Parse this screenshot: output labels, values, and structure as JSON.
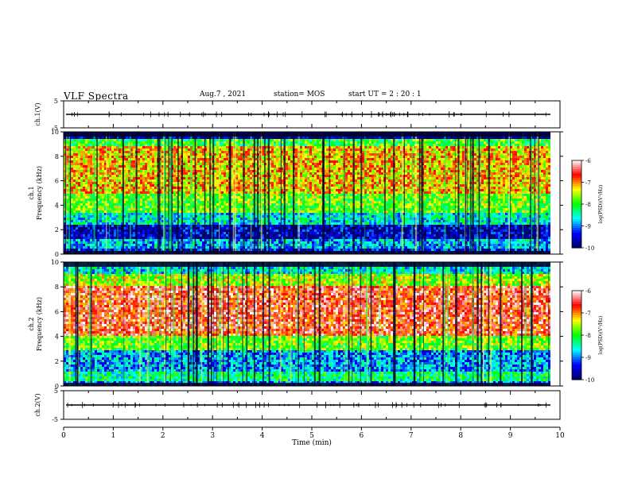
{
  "header": {
    "title": "VLF Spectra",
    "date": "Aug.7  , 2021",
    "station": "station= MOS",
    "start": "start  UT =   2 : 20 : 1"
  },
  "chart_data": [
    {
      "type": "line",
      "panel": "ch1-waveform",
      "ylabel": "ch.1(V)",
      "yticks": [
        "5",
        "-5"
      ],
      "ylim": [
        -5,
        5
      ],
      "xlim": [
        0,
        10
      ],
      "baseline": 0,
      "grid": false
    },
    {
      "type": "heatmap",
      "panel": "ch1-spectrogram",
      "ylabel": "ch.1\nFrequency (kHz)",
      "ylim": [
        0,
        10
      ],
      "yticks": [
        "0",
        "2",
        "4",
        "6",
        "8",
        "10"
      ],
      "xlim": [
        0,
        10
      ],
      "bands_khz": [
        {
          "from": 0.0,
          "to": 0.4,
          "level": -9.4
        },
        {
          "from": 0.4,
          "to": 1.3,
          "level": -8.8
        },
        {
          "from": 1.3,
          "to": 2.4,
          "level": -9.6
        },
        {
          "from": 2.4,
          "to": 3.4,
          "level": -8.6
        },
        {
          "from": 3.4,
          "to": 5.0,
          "level": -7.8
        },
        {
          "from": 5.0,
          "to": 8.8,
          "level": -7.2
        },
        {
          "from": 8.8,
          "to": 9.4,
          "level": -8.0
        },
        {
          "from": 9.4,
          "to": 10.0,
          "level": -9.8
        }
      ],
      "colorbar": {
        "label": "log(PSD)(V²/Hz)",
        "ticks": [
          "-6",
          "-7",
          "-8",
          "-9",
          "-10"
        ],
        "range": [
          -10,
          -6
        ]
      }
    },
    {
      "type": "heatmap",
      "panel": "ch2-spectrogram",
      "ylabel": "ch.2\nFrequency (kHz)",
      "ylim": [
        0,
        10
      ],
      "yticks": [
        "0",
        "2",
        "4",
        "6",
        "8",
        "10"
      ],
      "xlim": [
        0,
        10
      ],
      "bands_khz": [
        {
          "from": 0.0,
          "to": 0.4,
          "level": -9.0
        },
        {
          "from": 0.4,
          "to": 1.2,
          "level": -8.3
        },
        {
          "from": 1.2,
          "to": 2.8,
          "level": -8.9
        },
        {
          "from": 2.8,
          "to": 4.0,
          "level": -7.8
        },
        {
          "from": 4.0,
          "to": 8.0,
          "level": -6.6
        },
        {
          "from": 8.0,
          "to": 9.0,
          "level": -7.6
        },
        {
          "from": 9.0,
          "to": 10.0,
          "level": -8.6
        }
      ],
      "colorbar": {
        "label": "log(PSD)(V²/Hz)",
        "ticks": [
          "-6",
          "-7",
          "-8",
          "-9",
          "-10"
        ],
        "range": [
          -10,
          -6
        ]
      }
    },
    {
      "type": "line",
      "panel": "ch2-waveform",
      "ylabel": "ch.2(V)",
      "yticks": [
        "5",
        "-5"
      ],
      "ylim": [
        -5,
        5
      ],
      "xlim": [
        0,
        10
      ],
      "baseline": 0,
      "grid": false
    }
  ],
  "xaxis": {
    "label": "Time  (min)",
    "ticks": [
      "0",
      "1",
      "2",
      "3",
      "4",
      "5",
      "6",
      "7",
      "8",
      "9",
      "10"
    ],
    "range": [
      0,
      10
    ]
  },
  "colors": {
    "scale": [
      "#000060",
      "#0000ff",
      "#00ffff",
      "#00ff00",
      "#ffff00",
      "#ff0000",
      "#ffffff"
    ]
  }
}
